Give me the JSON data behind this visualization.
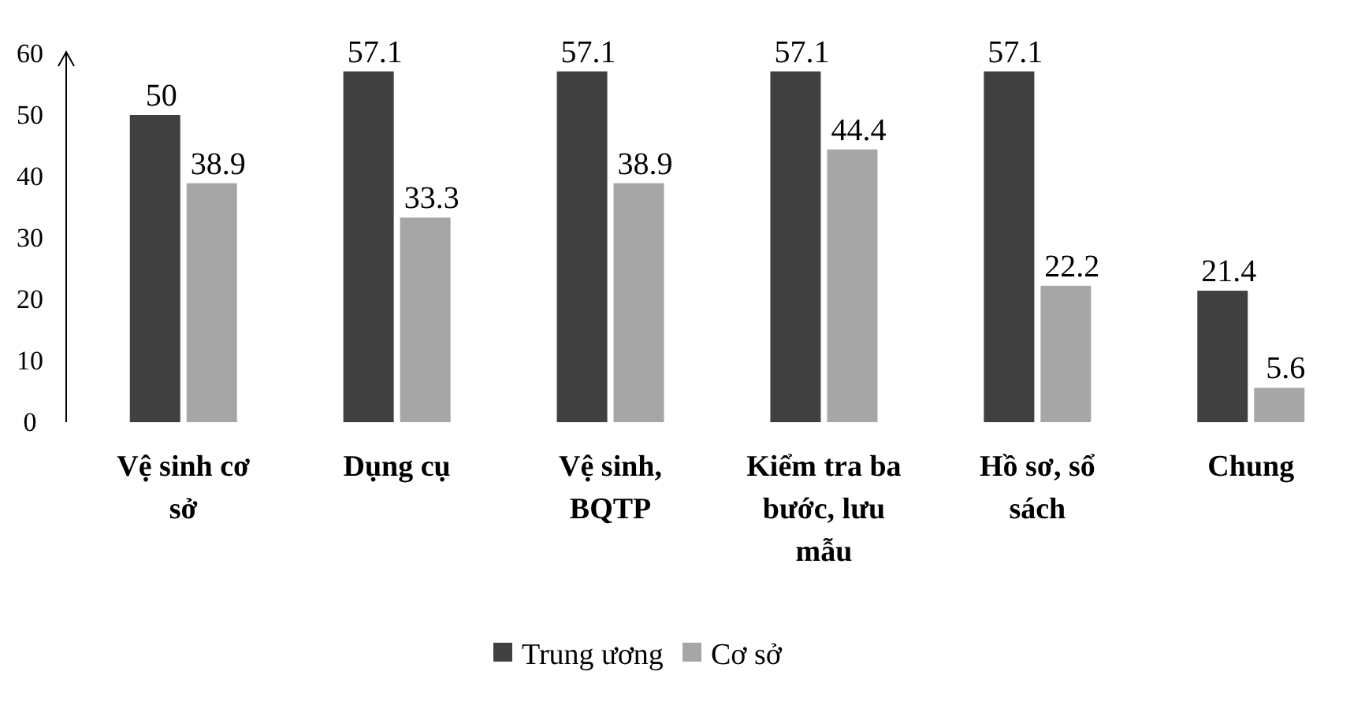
{
  "chart_data": {
    "type": "bar",
    "categories": [
      "Vệ sinh cơ sở",
      "Dụng cụ",
      "Vệ sinh, BQTP",
      "Kiểm tra ba bước, lưu mẫu",
      "Hồ sơ, sổ sách",
      "Chung"
    ],
    "series": [
      {
        "name": "Trung ương",
        "color": "#404040",
        "values": [
          50,
          57.1,
          57.1,
          57.1,
          57.1,
          21.4
        ]
      },
      {
        "name": "Cơ sở",
        "color": "#a6a6a6",
        "values": [
          38.9,
          33.3,
          38.9,
          44.4,
          22.2,
          5.6
        ]
      }
    ],
    "ylim": [
      0,
      60
    ],
    "yticks": [
      0,
      10,
      20,
      30,
      40,
      50,
      60
    ],
    "data_labels": true,
    "legend": "bottom"
  }
}
